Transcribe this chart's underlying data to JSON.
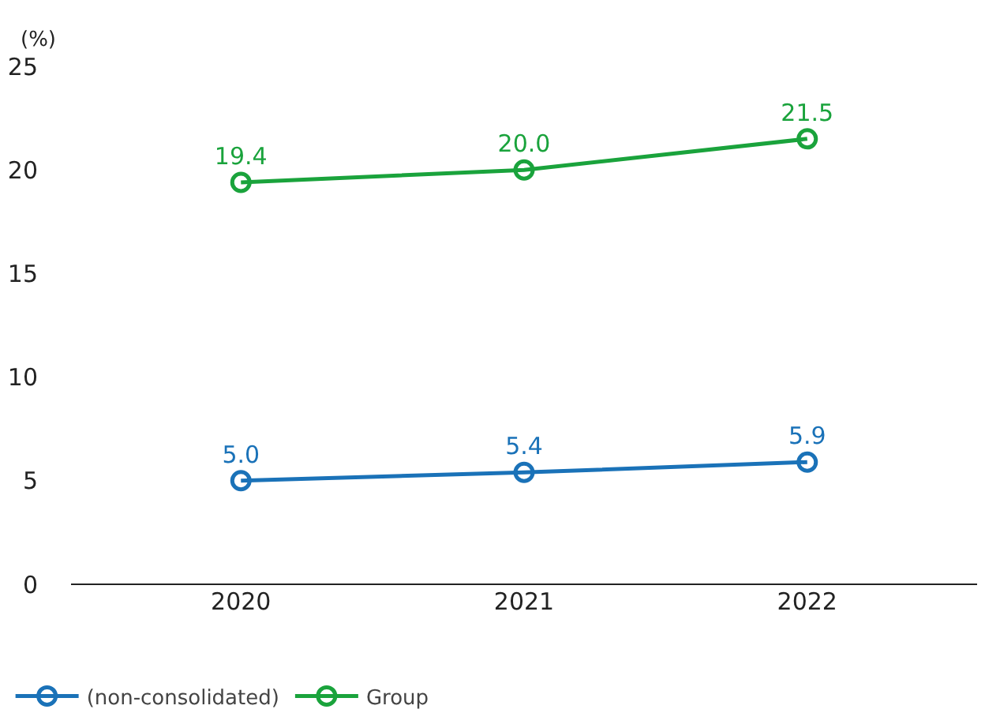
{
  "chart_data": {
    "type": "line",
    "ylabel": "(%)",
    "categories": [
      "2020",
      "2021",
      "2022"
    ],
    "series": [
      {
        "name": "(non-consolidated)",
        "color": "#1a72b8",
        "values": [
          5.0,
          5.4,
          5.9
        ],
        "value_labels": [
          "5.0",
          "5.4",
          "5.9"
        ]
      },
      {
        "name": "Group",
        "color": "#1aa33c",
        "values": [
          19.4,
          20.0,
          21.5
        ],
        "value_labels": [
          "19.4",
          "20.0",
          "21.5"
        ]
      }
    ],
    "ylim": [
      0,
      25
    ],
    "yticks": [
      0,
      5,
      10,
      15,
      20,
      25
    ],
    "grid": false,
    "legend": "bottom left",
    "marker": "circle",
    "line_style": "solid"
  }
}
